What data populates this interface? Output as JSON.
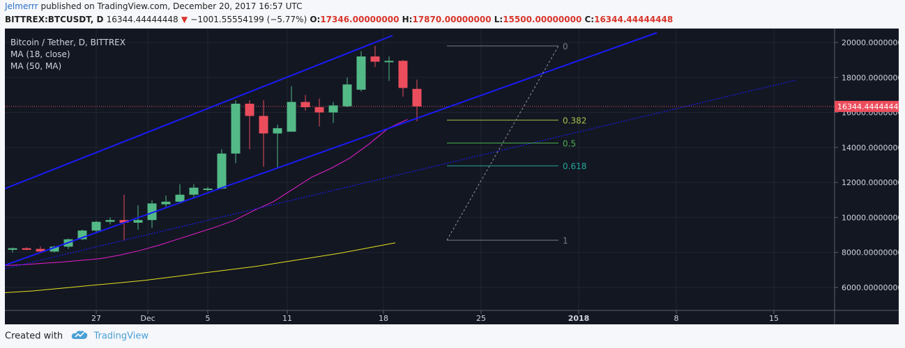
{
  "header": {
    "author": "Jelmerrr",
    "published_text": "published on TradingView.com, December 20, 2017 16:57 UTC",
    "symbol": "BITTREX:BTCUSDT, D",
    "last_price": "16344.44444448",
    "change_icon": "triangle-down-icon",
    "change": "−1001.55554199 (−5.77%)",
    "open_label": "O:",
    "open": "17346.00000000",
    "high_label": "H:",
    "high": "17870.00000000",
    "low_label": "L:",
    "low": "15500.00000000",
    "close_label": "C:",
    "close": "16344.44444448"
  },
  "legend": {
    "title": "Bitcoin / Tether, D, BITTREX",
    "ma1": "MA (18, close)",
    "ma2": "MA (50, MA)"
  },
  "footer": {
    "created_with": "Created with",
    "brand": "TradingView",
    "logo_icon": "tradingview-cloud-icon"
  },
  "colors": {
    "background": "#131722",
    "up": "#53b987",
    "down": "#eb4d5c",
    "channel": "#1b1bf5",
    "ma18": "#e91ed0",
    "ma50": "#e6e21e",
    "price_line": "#eb4d5c",
    "fib_0382": "#a2c04a",
    "fib_05": "#4caf50",
    "fib_0618": "#26a69a",
    "fib_01": "#787b86"
  },
  "chart_data": {
    "type": "candlestick",
    "title": "Bitcoin / Tether, D, BITTREX",
    "ylim": [
      4800,
      21200
    ],
    "y_ticks": [
      "20000.00000000",
      "18000.00000000",
      "16000.00000000",
      "14000.00000000",
      "12000.00000000",
      "10000.00000000",
      "8000.00000000",
      "6000.00000000"
    ],
    "x_ticks": [
      "27",
      "Dec",
      "5",
      "11",
      "18",
      "25",
      "2018",
      "8",
      "15"
    ],
    "current_price_label": "16344.44444448",
    "candles": [
      {
        "o": 8150,
        "h": 8280,
        "l": 8000,
        "c": 8240
      },
      {
        "o": 8240,
        "h": 8290,
        "l": 8130,
        "c": 8150
      },
      {
        "o": 8200,
        "h": 8340,
        "l": 8050,
        "c": 8050
      },
      {
        "o": 8050,
        "h": 8380,
        "l": 8000,
        "c": 8330
      },
      {
        "o": 8330,
        "h": 8800,
        "l": 8200,
        "c": 8750
      },
      {
        "o": 8750,
        "h": 9300,
        "l": 8700,
        "c": 9250
      },
      {
        "o": 9250,
        "h": 9800,
        "l": 9100,
        "c": 9750
      },
      {
        "o": 9750,
        "h": 10000,
        "l": 9600,
        "c": 9850
      },
      {
        "o": 9850,
        "h": 11300,
        "l": 8700,
        "c": 9700
      },
      {
        "o": 9700,
        "h": 10700,
        "l": 9300,
        "c": 9850
      },
      {
        "o": 9850,
        "h": 11000,
        "l": 9400,
        "c": 10800
      },
      {
        "o": 10750,
        "h": 11250,
        "l": 10600,
        "c": 10900
      },
      {
        "o": 10900,
        "h": 11900,
        "l": 10800,
        "c": 11300
      },
      {
        "o": 11300,
        "h": 11900,
        "l": 11100,
        "c": 11700
      },
      {
        "o": 11600,
        "h": 11750,
        "l": 11500,
        "c": 11650
      },
      {
        "o": 11650,
        "h": 13900,
        "l": 11600,
        "c": 13650
      },
      {
        "o": 13650,
        "h": 16700,
        "l": 13100,
        "c": 16500
      },
      {
        "o": 16500,
        "h": 16700,
        "l": 13900,
        "c": 15800
      },
      {
        "o": 15800,
        "h": 16700,
        "l": 12900,
        "c": 14800
      },
      {
        "o": 14800,
        "h": 15300,
        "l": 12800,
        "c": 15100
      },
      {
        "o": 14900,
        "h": 17500,
        "l": 14900,
        "c": 16600
      },
      {
        "o": 16600,
        "h": 17000,
        "l": 16100,
        "c": 16300
      },
      {
        "o": 16300,
        "h": 16800,
        "l": 15200,
        "c": 16000
      },
      {
        "o": 16000,
        "h": 16600,
        "l": 15400,
        "c": 16400
      },
      {
        "o": 16350,
        "h": 18000,
        "l": 16300,
        "c": 17600
      },
      {
        "o": 17300,
        "h": 19500,
        "l": 17200,
        "c": 19200
      },
      {
        "o": 19200,
        "h": 19800,
        "l": 18600,
        "c": 18900
      },
      {
        "o": 18900,
        "h": 19200,
        "l": 17800,
        "c": 18950
      },
      {
        "o": 18950,
        "h": 19000,
        "l": 16900,
        "c": 17400
      },
      {
        "o": 17346,
        "h": 17870,
        "l": 15500,
        "c": 16344
      }
    ],
    "series": [
      {
        "name": "MA (18, close)",
        "values": [
          7250,
          7300,
          7380,
          7450,
          7550,
          7650,
          7850,
          8100,
          8400,
          8750,
          9100,
          9450,
          9850,
          10400,
          10900,
          11600,
          12300,
          12800,
          13400,
          14200,
          15100,
          15600
        ]
      },
      {
        "name": "MA (50, MA)",
        "values": [
          5700,
          5800,
          5950,
          6100,
          6250,
          6400,
          6600,
          6800,
          7000,
          7200,
          7450,
          7700,
          7950,
          8250,
          8550
        ]
      }
    ],
    "fibonacci": [
      {
        "level": "0",
        "price": 19800
      },
      {
        "level": "0.382",
        "price": 15560
      },
      {
        "level": "0.5",
        "price": 14250
      },
      {
        "level": "0.618",
        "price": 12950
      },
      {
        "level": "1",
        "price": 8700
      }
    ]
  }
}
